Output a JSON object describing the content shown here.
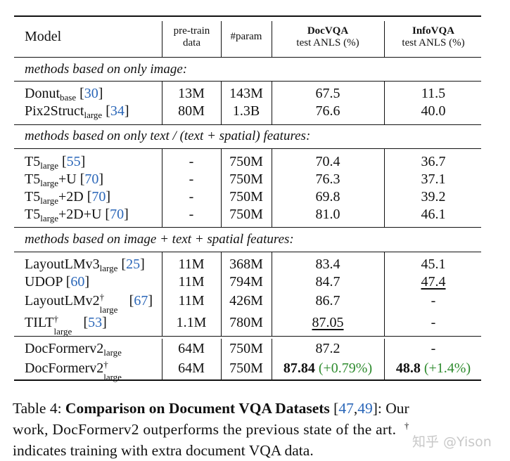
{
  "table": {
    "headers": {
      "model": "Model",
      "pretrain_line1": "pre-train",
      "pretrain_line2": "data",
      "param": "#param",
      "docvqa_line1": "DocVQA",
      "docvqa_line2": "test ANLS (%)",
      "infovqa_line1": "InfoVQA",
      "infovqa_line2": "test ANLS (%)"
    },
    "sections": [
      "methods based on only image:",
      "methods based on only text / (text + spatial) features:",
      "methods based on image + text + spatial features:"
    ],
    "rows": [
      {
        "base": "Donut",
        "sub": "base",
        "sup": "",
        "suffix": "",
        "cite": "30",
        "pretrain": "13M",
        "param": "143M",
        "docvqa": "67.5",
        "infovqa": "11.5"
      },
      {
        "base": "Pix2Struct",
        "sub": "large",
        "sup": "",
        "suffix": "",
        "cite": "34",
        "pretrain": "80M",
        "param": "1.3B",
        "docvqa": "76.6",
        "infovqa": "40.0"
      },
      {
        "base": "T5",
        "sub": "large",
        "sup": "",
        "suffix": "",
        "cite": "55",
        "pretrain": "-",
        "param": "750M",
        "docvqa": "70.4",
        "infovqa": "36.7"
      },
      {
        "base": "T5",
        "sub": "large",
        "sup": "",
        "suffix": "+U",
        "cite": "70",
        "pretrain": "-",
        "param": "750M",
        "docvqa": "76.3",
        "infovqa": "37.1"
      },
      {
        "base": "T5",
        "sub": "large",
        "sup": "",
        "suffix": "+2D",
        "cite": "70",
        "pretrain": "-",
        "param": "750M",
        "docvqa": "69.8",
        "infovqa": "39.2"
      },
      {
        "base": "T5",
        "sub": "large",
        "sup": "",
        "suffix": "+2D+U",
        "cite": "70",
        "pretrain": "-",
        "param": "750M",
        "docvqa": "81.0",
        "infovqa": "46.1"
      },
      {
        "base": "LayoutLMv3",
        "sub": "large",
        "sup": "",
        "suffix": "",
        "cite": "25",
        "pretrain": "11M",
        "param": "368M",
        "docvqa": "83.4",
        "infovqa": "45.1"
      },
      {
        "base": "UDOP",
        "sub": "",
        "sup": "",
        "suffix": "",
        "cite": "60",
        "pretrain": "11M",
        "param": "794M",
        "docvqa": "84.7",
        "infovqa": "47.4"
      },
      {
        "base": "LayoutLMv2",
        "sub": "large",
        "sup": "†",
        "suffix": "",
        "cite": "67",
        "pretrain": "11M",
        "param": "426M",
        "docvqa": "86.7",
        "infovqa": "-"
      },
      {
        "base": "TILT",
        "sub": "large",
        "sup": "†",
        "suffix": "",
        "cite": "53",
        "pretrain": "1.1M",
        "param": "780M",
        "docvqa": "87.05",
        "infovqa": "-"
      },
      {
        "base": "DocFormerv2",
        "sub": "large",
        "sup": "",
        "suffix": "",
        "cite": "",
        "pretrain": "64M",
        "param": "750M",
        "docvqa": "87.2",
        "infovqa": "-"
      },
      {
        "base": "DocFormerv2",
        "sub": "large",
        "sup": "†",
        "suffix": "",
        "cite": "",
        "pretrain": "64M",
        "param": "750M",
        "docvqa": "87.84",
        "docvqa_gain": "(+0.79%)",
        "infovqa": "48.8",
        "infovqa_gain": "(+1.4%)"
      }
    ]
  },
  "caption": {
    "prefix": "Table 4: ",
    "title": "Comparison on Document VQA Datasets",
    "cite_open": " [",
    "cite_1": "47",
    "cite_sep": ",",
    "cite_2": "49",
    "cite_close": "]",
    "text_1": ": Our",
    "line2": "work, DocFormerv2 outperforms the previous state of the art.",
    "dagger": "†",
    "line3": "indicates training with extra document VQA data."
  },
  "watermark": "知乎 @Yison",
  "colors": {
    "citation": "#2a66b8",
    "gain": "#2e8b2e",
    "rule": "#111111"
  }
}
